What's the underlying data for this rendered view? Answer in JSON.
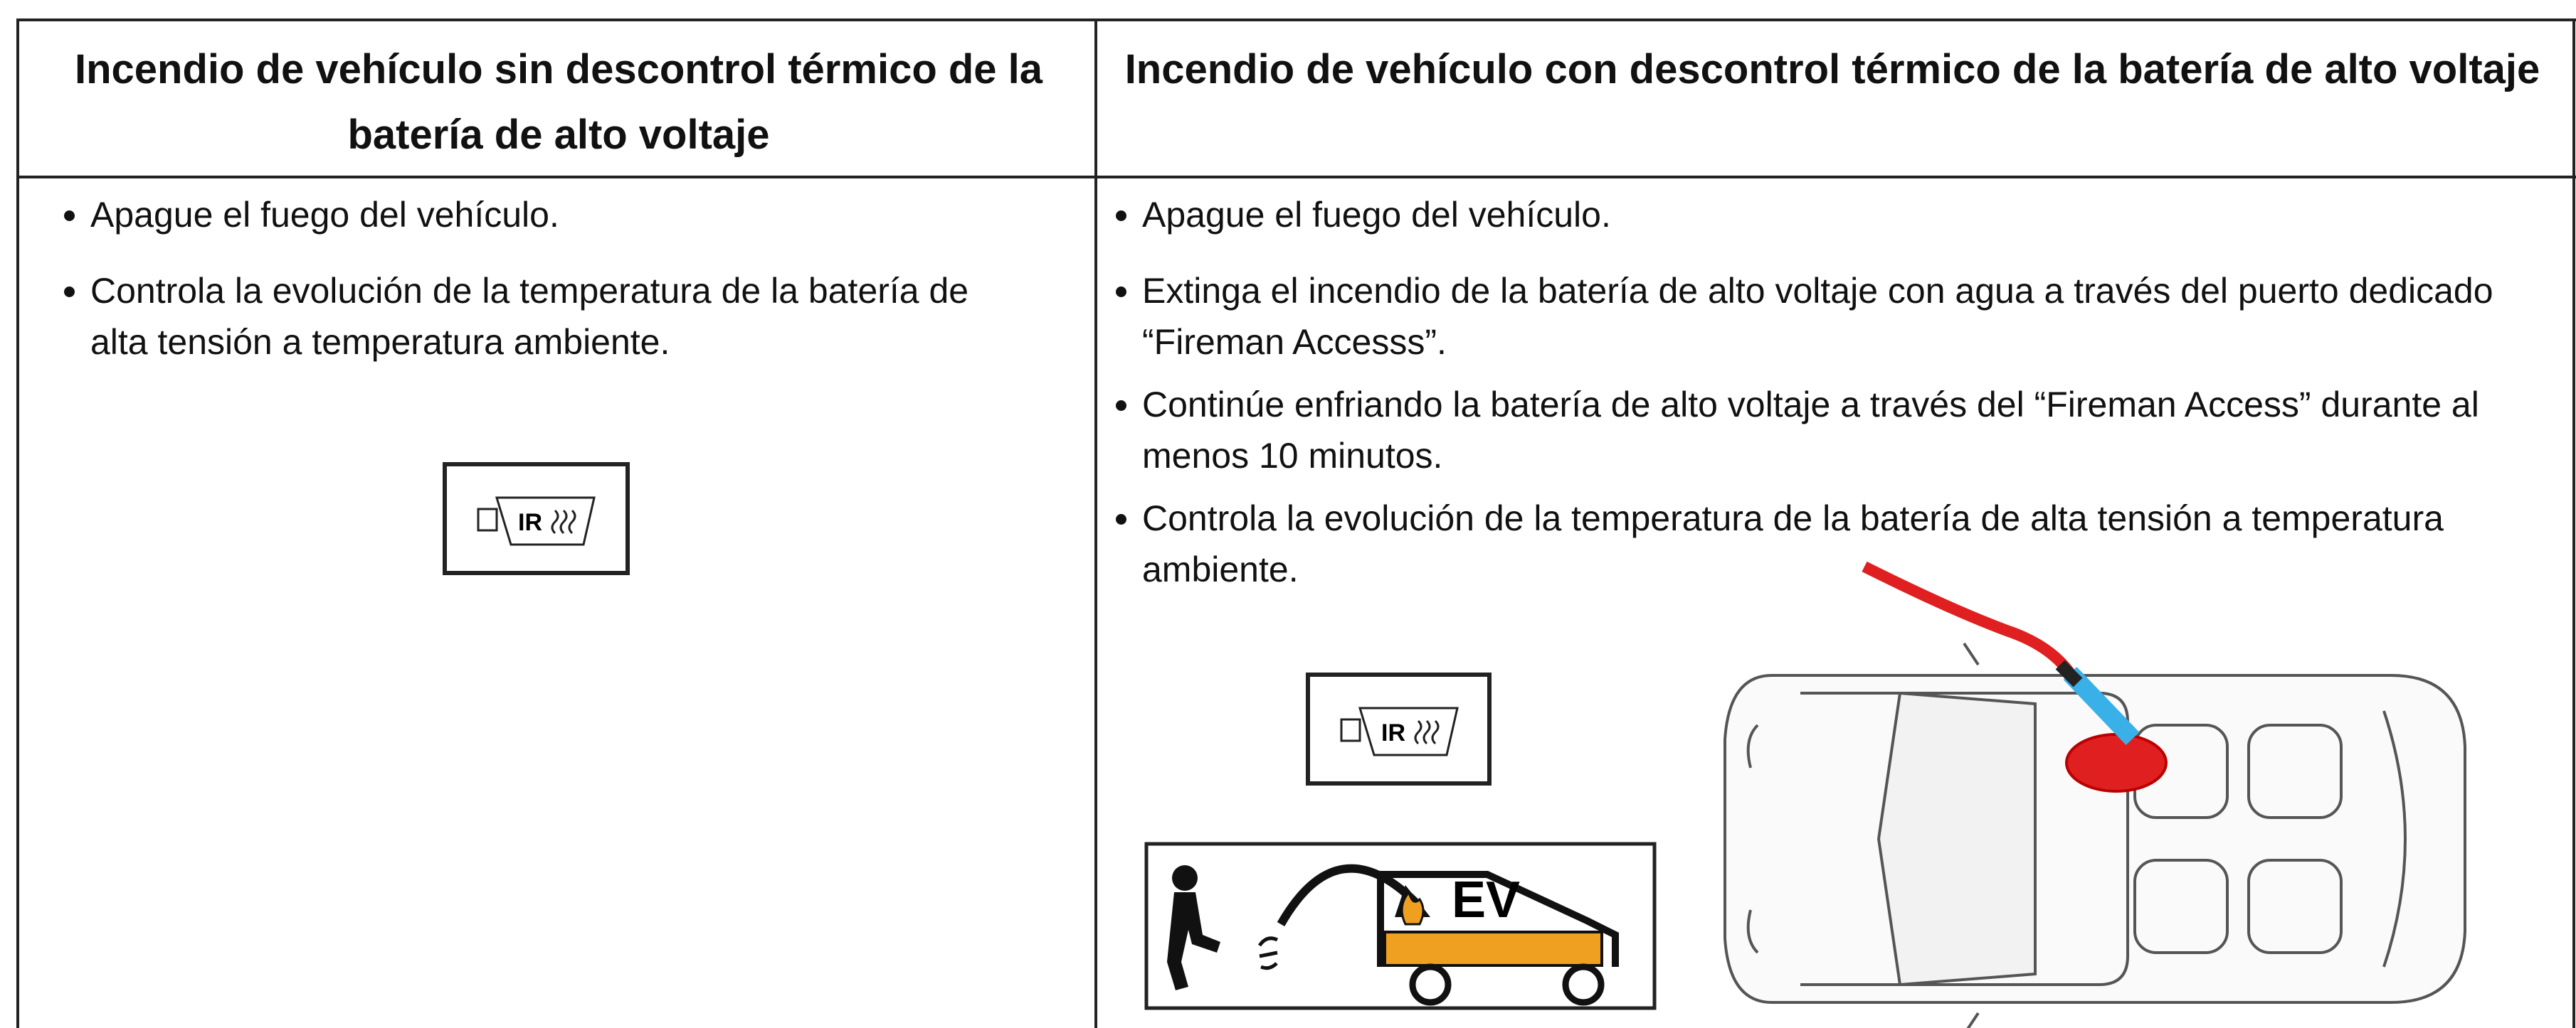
{
  "table": {
    "headers": [
      "Incendio de vehículo sin descontrol térmico de la batería de alto voltaje",
      "Incendio de vehículo con descontrol térmico de la batería de alto voltaje"
    ],
    "rows": [
      [
        [
          "Apague el fuego del vehículo.",
          "Controla la evolución de la temperatura de la batería de alta tensión a temperatura ambiente."
        ],
        [
          "Apague el fuego del vehículo.",
          "Extinga el incendio de la batería de alto voltaje con agua a través del puerto dedicado “Fireman Accesss”.",
          "Continúe enfriando la batería de alto voltaje a través del “Fireman Access” durante al menos 10 minutos.",
          "Controla la evolución de la temperatura de la batería de alta tensión a temperatura ambiente."
        ]
      ]
    ]
  },
  "icons": {
    "ir_label": "IR",
    "ev_label": "EV"
  }
}
